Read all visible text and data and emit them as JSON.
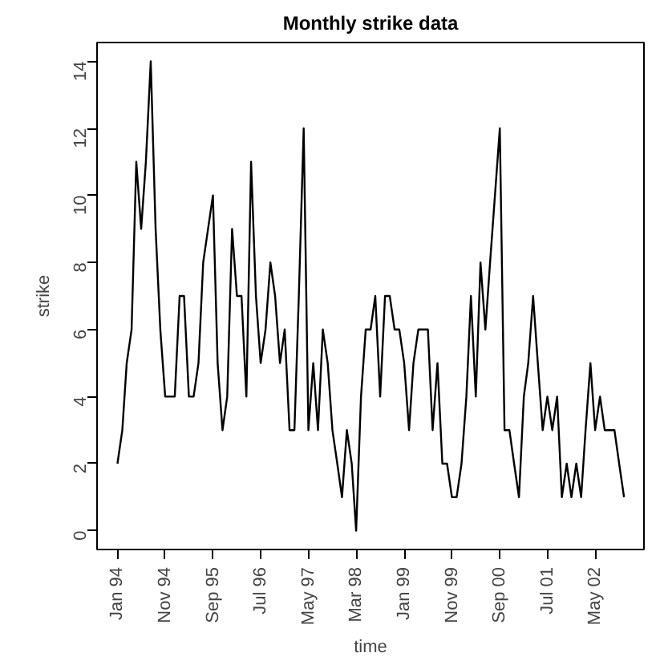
{
  "chart_data": {
    "type": "line",
    "title": "Monthly strike data",
    "xlabel": "time",
    "ylabel": "strike",
    "x": [
      "1994-01",
      "1994-02",
      "1994-03",
      "1994-04",
      "1994-05",
      "1994-06",
      "1994-07",
      "1994-08",
      "1994-09",
      "1994-10",
      "1994-11",
      "1994-12",
      "1995-01",
      "1995-02",
      "1995-03",
      "1995-04",
      "1995-05",
      "1995-06",
      "1995-07",
      "1995-08",
      "1995-09",
      "1995-10",
      "1995-11",
      "1995-12",
      "1996-01",
      "1996-02",
      "1996-03",
      "1996-04",
      "1996-05",
      "1996-06",
      "1996-07",
      "1996-08",
      "1996-09",
      "1996-10",
      "1996-11",
      "1996-12",
      "1997-01",
      "1997-02",
      "1997-03",
      "1997-04",
      "1997-05",
      "1997-06",
      "1997-07",
      "1997-08",
      "1997-09",
      "1997-10",
      "1997-11",
      "1997-12",
      "1998-01",
      "1998-02",
      "1998-03",
      "1998-04",
      "1998-05",
      "1998-06",
      "1998-07",
      "1998-08",
      "1998-09",
      "1998-10",
      "1998-11",
      "1998-12",
      "1999-01",
      "1999-02",
      "1999-03",
      "1999-04",
      "1999-05",
      "1999-06",
      "1999-07",
      "1999-08",
      "1999-09",
      "1999-10",
      "1999-11",
      "1999-12",
      "2000-01",
      "2000-02",
      "2000-03",
      "2000-04",
      "2000-05",
      "2000-06",
      "2000-07",
      "2000-08",
      "2000-09",
      "2000-10",
      "2000-11",
      "2000-12",
      "2001-01",
      "2001-02",
      "2001-03",
      "2001-04",
      "2001-05",
      "2001-06",
      "2001-07",
      "2001-08",
      "2001-09",
      "2001-10",
      "2001-11",
      "2001-12",
      "2002-01",
      "2002-02",
      "2002-03",
      "2002-04",
      "2002-05",
      "2002-06",
      "2002-07",
      "2002-08",
      "2002-09",
      "2002-10",
      "2002-11"
    ],
    "series": [
      {
        "color": "#000000",
        "values": [
          2,
          3,
          5,
          6,
          11,
          9,
          11,
          14,
          9,
          6,
          4,
          4,
          4,
          7,
          7,
          4,
          4,
          5,
          8,
          9,
          10,
          5,
          3,
          4,
          9,
          7,
          7,
          4,
          11,
          7,
          5,
          6,
          8,
          7,
          5,
          6,
          3,
          3,
          7,
          12,
          3,
          5,
          3,
          6,
          5,
          3,
          2,
          1,
          3,
          2,
          0,
          4,
          6,
          6,
          7,
          4,
          7,
          7,
          6,
          6,
          5,
          3,
          5,
          6,
          6,
          6,
          3,
          5,
          2,
          2,
          1,
          1,
          2,
          4,
          7,
          4,
          8,
          6,
          8,
          10,
          12,
          3,
          3,
          2,
          1,
          4,
          5,
          7,
          5,
          3,
          4,
          3,
          4,
          1,
          2,
          1,
          2,
          1,
          3,
          5,
          3,
          4,
          3,
          3,
          3,
          2,
          1
        ]
      }
    ],
    "xlim": [
      "1993-08-24",
      "2003-03-08"
    ],
    "ylim": [
      -0.56,
      14.56
    ],
    "xticks": [
      {
        "value": "1994-01",
        "label": "Jan 94"
      },
      {
        "value": "1994-11",
        "label": "Nov 94"
      },
      {
        "value": "1995-09",
        "label": "Sep 95"
      },
      {
        "value": "1996-07",
        "label": "Jul 96"
      },
      {
        "value": "1997-05",
        "label": "May 97"
      },
      {
        "value": "1998-03",
        "label": "Mar 98"
      },
      {
        "value": "1999-01",
        "label": "Jan 99"
      },
      {
        "value": "1999-11",
        "label": "Nov 99"
      },
      {
        "value": "2000-09",
        "label": "Sep 00"
      },
      {
        "value": "2001-07",
        "label": "Jul 01"
      },
      {
        "value": "2002-05",
        "label": "May 02"
      }
    ],
    "yticks": [
      0,
      2,
      4,
      6,
      8,
      10,
      12,
      14
    ],
    "grid": false,
    "marker": "none",
    "line_style": "solid"
  }
}
